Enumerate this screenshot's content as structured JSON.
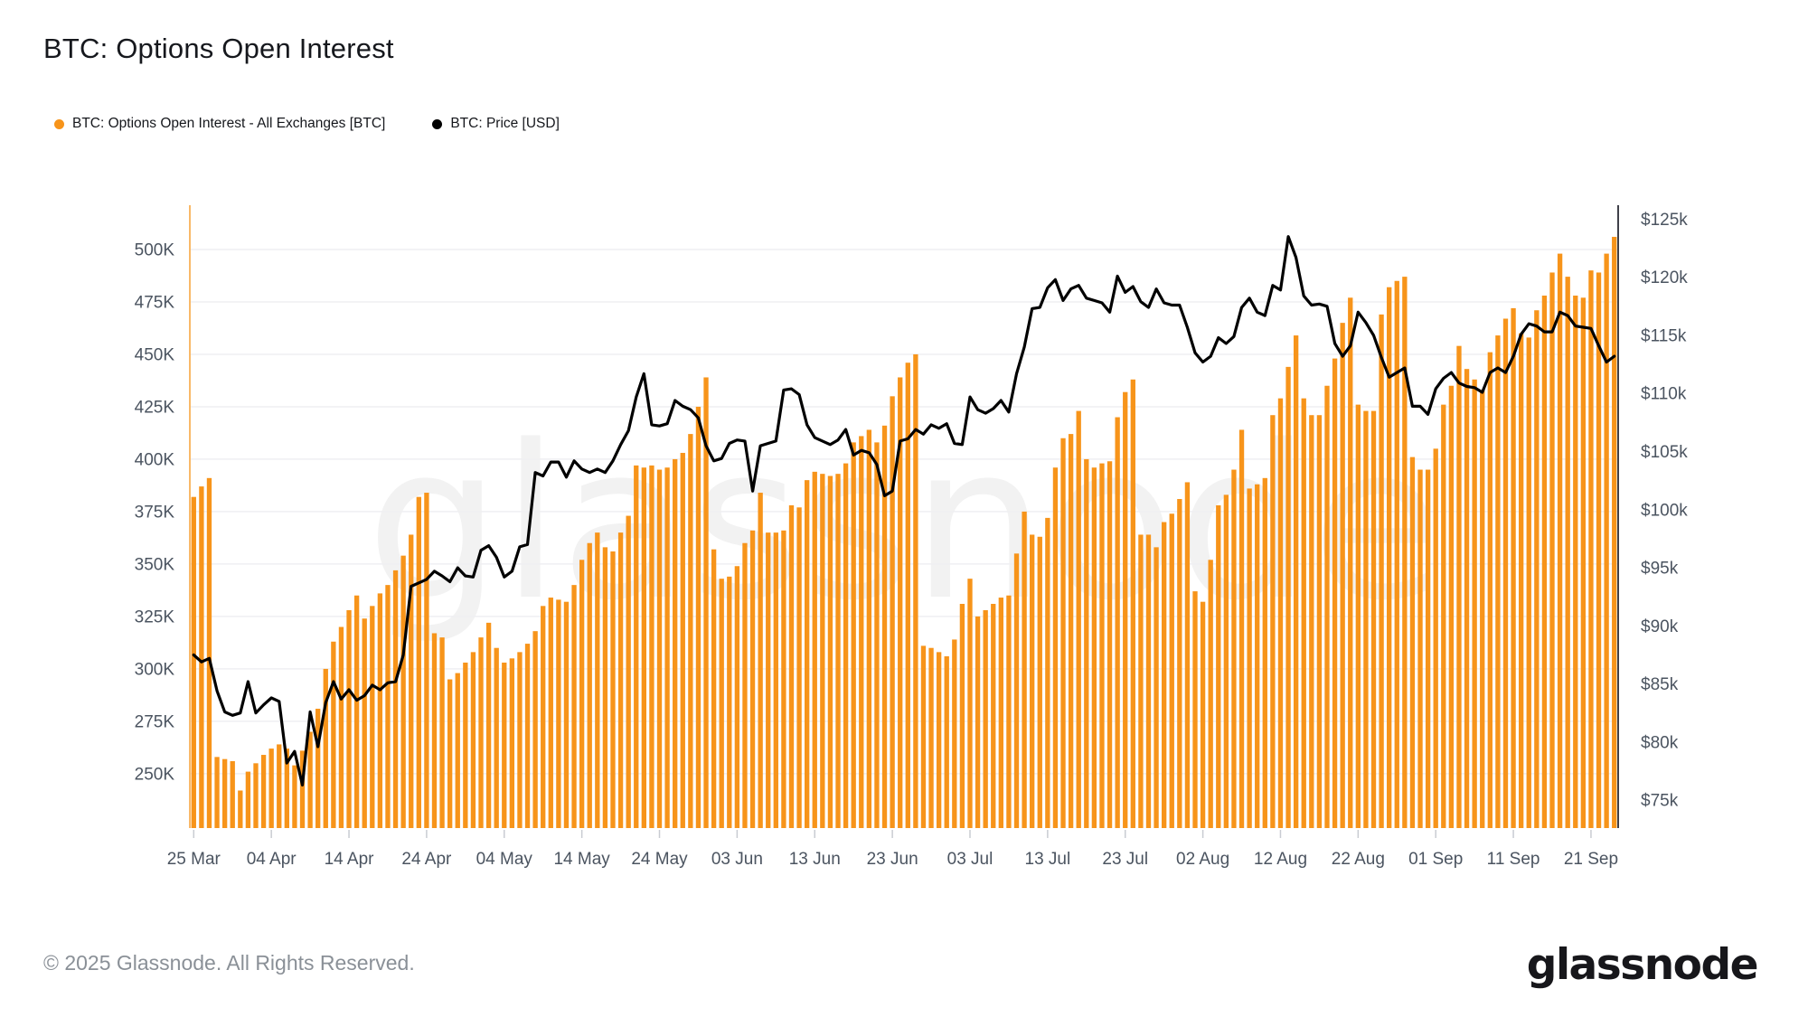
{
  "header": {
    "title": "BTC: Options Open Interest"
  },
  "legend": {
    "items": [
      {
        "label": "BTC: Options Open Interest - All Exchanges [BTC]",
        "color": "#f7941a",
        "marker": "circle-icon"
      },
      {
        "label": "BTC: Price [USD]",
        "color": "#000000",
        "marker": "circle-icon"
      }
    ]
  },
  "watermark": {
    "text": "glassnode"
  },
  "footer": {
    "copyright": "© 2025 Glassnode. All Rights Reserved.",
    "logo_text": "glassnode"
  },
  "chart_data": {
    "type": "bar+line",
    "title": "BTC: Options Open Interest",
    "date_range": {
      "start": "25 Mar 2025",
      "end": "24 Sep 2025",
      "interval": "daily"
    },
    "x_tick_labels": [
      "25 Mar",
      "04 Apr",
      "14 Apr",
      "24 Apr",
      "04 May",
      "14 May",
      "24 May",
      "03 Jun",
      "13 Jun",
      "23 Jun",
      "03 Jul",
      "13 Jul",
      "23 Jul",
      "02 Aug",
      "12 Aug",
      "22 Aug",
      "01 Sep",
      "11 Sep",
      "21 Sep"
    ],
    "x_tick_indices": [
      0,
      10,
      20,
      30,
      40,
      50,
      60,
      70,
      80,
      90,
      100,
      110,
      120,
      130,
      140,
      150,
      160,
      170,
      180
    ],
    "grid": "horizontal",
    "legend_position": "top-left",
    "left_axis": {
      "series": "Options Open Interest",
      "unit": "BTC contracts (thousands)",
      "tick_labels": [
        "250K",
        "275K",
        "300K",
        "325K",
        "350K",
        "375K",
        "400K",
        "425K",
        "450K",
        "475K",
        "500K"
      ],
      "tick_values": [
        250,
        275,
        300,
        325,
        350,
        375,
        400,
        425,
        450,
        475,
        500
      ],
      "range": [
        224.1,
        521.1
      ]
    },
    "right_axis": {
      "series": "BTC Price",
      "unit": "USD (thousands)",
      "tick_labels": [
        "$75k",
        "$80k",
        "$85k",
        "$90k",
        "$95k",
        "$100k",
        "$105k",
        "$110k",
        "$115k",
        "$120k",
        "$125k"
      ],
      "tick_values": [
        75,
        80,
        85,
        90,
        95,
        100,
        105,
        110,
        115,
        120,
        125
      ],
      "range": [
        72.6,
        126.2
      ]
    },
    "series": [
      {
        "name": "BTC: Options Open Interest - All Exchanges [BTC]",
        "type": "bar",
        "axis": "left",
        "color": "#f7941a",
        "values": [
          382,
          387,
          391,
          258,
          257,
          256,
          242,
          251,
          255,
          259,
          262,
          264,
          262,
          254,
          261,
          270,
          281,
          300,
          313,
          320,
          328,
          335,
          324,
          330,
          336,
          340,
          347,
          354,
          364,
          382,
          384,
          317,
          315,
          295,
          298,
          303,
          308,
          315,
          322,
          310,
          303,
          305,
          308,
          312,
          318,
          330,
          334,
          333,
          332,
          340,
          352,
          360,
          365,
          358,
          356,
          365,
          373,
          397,
          396,
          397,
          395,
          396,
          400,
          403,
          412,
          425,
          439,
          357,
          343,
          344,
          349,
          360,
          366,
          384,
          365,
          365,
          366,
          378,
          377,
          390,
          394,
          393,
          392,
          393,
          398,
          408,
          411,
          414,
          408,
          416,
          430,
          439,
          446,
          450,
          311,
          310,
          308,
          306,
          314,
          331,
          343,
          325,
          328,
          331,
          334,
          335,
          355,
          375,
          364,
          363,
          372,
          396,
          410,
          412,
          423,
          400,
          396,
          398,
          399,
          420,
          432,
          438,
          364,
          364,
          358,
          370,
          374,
          381,
          389,
          337,
          332,
          352,
          378,
          383,
          395,
          414,
          386,
          388,
          391,
          421,
          429,
          444,
          459,
          429,
          421,
          421,
          435,
          448,
          465,
          477,
          426,
          423,
          423,
          469,
          482,
          485,
          487,
          401,
          395,
          395,
          405,
          426,
          435,
          454,
          443,
          438,
          433,
          451,
          459,
          467,
          472,
          460,
          458,
          471,
          478,
          489,
          498,
          487,
          478,
          477,
          490,
          489,
          498,
          506
        ]
      },
      {
        "name": "BTC: Price [USD]",
        "type": "line",
        "axis": "right",
        "color": "#000000",
        "values": [
          87.5,
          86.9,
          87.2,
          84.4,
          82.6,
          82.3,
          82.5,
          85.2,
          82.5,
          83.2,
          83.8,
          83.5,
          78.2,
          79.2,
          76.3,
          82.6,
          79.6,
          83.4,
          85.2,
          83.7,
          84.5,
          83.6,
          84.0,
          84.9,
          84.5,
          85.1,
          85.2,
          87.5,
          93.4,
          93.7,
          94.0,
          94.7,
          94.3,
          93.8,
          95.0,
          94.3,
          94.2,
          96.5,
          96.9,
          95.9,
          94.2,
          94.7,
          96.8,
          97.0,
          103.2,
          102.9,
          104.1,
          104.1,
          102.8,
          104.2,
          103.5,
          103.2,
          103.5,
          103.2,
          104.2,
          105.6,
          106.8,
          109.7,
          111.7,
          107.3,
          107.2,
          107.4,
          109.4,
          108.9,
          108.6,
          107.9,
          105.5,
          104.2,
          104.4,
          105.7,
          106.0,
          105.9,
          101.6,
          105.5,
          105.7,
          105.9,
          110.3,
          110.4,
          109.9,
          107.3,
          106.2,
          105.9,
          105.6,
          106.0,
          106.9,
          104.7,
          105.1,
          104.9,
          103.9,
          101.2,
          101.6,
          105.9,
          106.1,
          106.9,
          106.5,
          107.3,
          107.0,
          107.4,
          105.7,
          105.6,
          109.7,
          108.6,
          108.3,
          108.7,
          109.4,
          108.4,
          111.7,
          114.0,
          117.3,
          117.4,
          119.1,
          119.8,
          118.0,
          119.0,
          119.3,
          118.2,
          118.0,
          117.8,
          117.0,
          120.1,
          118.7,
          119.2,
          117.9,
          117.4,
          119.0,
          117.8,
          117.6,
          117.6,
          115.7,
          113.5,
          112.7,
          113.2,
          114.8,
          114.3,
          114.9,
          117.4,
          118.2,
          117.0,
          116.7,
          119.3,
          118.9,
          123.5,
          121.7,
          118.4,
          117.6,
          117.7,
          117.5,
          114.3,
          113.2,
          114.1,
          117.0,
          116.1,
          115.0,
          113.1,
          111.4,
          111.8,
          112.2,
          108.9,
          108.9,
          108.2,
          110.4,
          111.3,
          111.8,
          110.9,
          110.6,
          110.5,
          110.1,
          111.8,
          112.2,
          111.8,
          113.2,
          115.1,
          116.0,
          115.8,
          115.3,
          115.3,
          117.0,
          116.7,
          115.8,
          115.7,
          115.6,
          114.1,
          112.7,
          113.2
        ]
      }
    ],
    "style": {
      "bar_color": "#f7941a",
      "line_color": "#000000",
      "grid_color": "#efeff2",
      "left_axis_line_color": "#f9b968",
      "right_axis_line_color": "#3f4049",
      "axis_label_color": "#4b5460",
      "watermark_color": "rgba(0,0,0,0.05)"
    }
  }
}
